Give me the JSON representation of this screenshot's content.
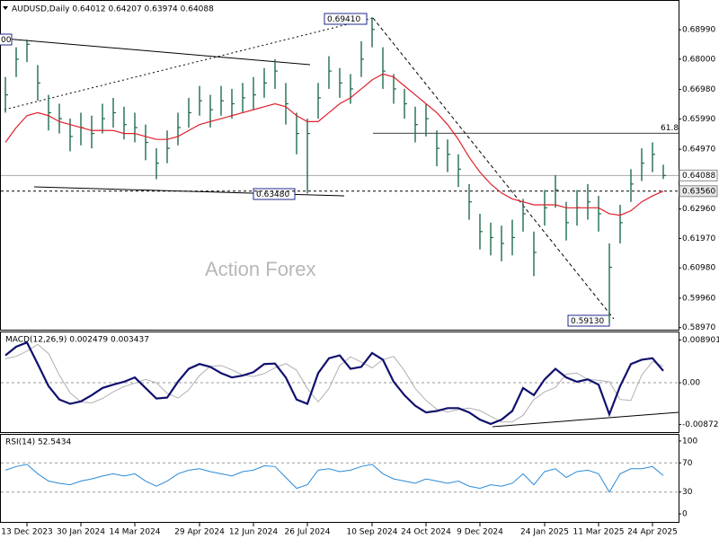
{
  "chart_data": [
    {
      "type": "ohlc",
      "title": "AUDUSD,Daily 0.64012 0.64207 0.63974 0.64088",
      "watermark": "Action Forex",
      "categories": [
        null,
        null,
        "13 Dec 2023",
        null,
        null,
        null,
        null,
        "30 Jan 2024",
        null,
        null,
        null,
        null,
        "14 Mar 2024",
        null,
        null,
        null,
        null,
        null,
        "29 Apr 2024",
        null,
        null,
        null,
        null,
        "12 Jun 2024",
        null,
        null,
        null,
        null,
        "26 Jul 2024",
        null,
        null,
        null,
        null,
        null,
        "10 Sep 2024",
        null,
        null,
        null,
        null,
        "24 Oct 2024",
        null,
        null,
        null,
        null,
        "9 Dec 2024",
        null,
        null,
        null,
        null,
        null,
        "24 Jan 2025",
        null,
        null,
        null,
        null,
        "11 Mar 2025",
        null,
        null,
        null,
        null,
        "24 Apr 2025",
        null
      ],
      "high": [
        0.674,
        0.684,
        0.6866,
        0.678,
        0.668,
        0.665,
        0.66,
        0.662,
        0.661,
        0.665,
        0.667,
        0.664,
        0.662,
        0.658,
        0.65,
        0.656,
        0.662,
        0.667,
        0.671,
        0.668,
        0.671,
        0.67,
        0.672,
        0.674,
        0.677,
        0.68,
        0.672,
        0.662,
        0.66,
        0.672,
        0.681,
        0.677,
        0.675,
        0.686,
        0.6941,
        0.684,
        0.675,
        0.67,
        0.664,
        0.665,
        0.656,
        0.653,
        0.648,
        0.638,
        0.628,
        0.625,
        0.624,
        0.626,
        0.633,
        0.622,
        0.636,
        0.641,
        0.632,
        0.636,
        0.638,
        0.634,
        0.618,
        0.631,
        0.643,
        0.65,
        0.652,
        0.6445
      ],
      "low": [
        0.662,
        0.674,
        0.679,
        0.666,
        0.656,
        0.655,
        0.649,
        0.651,
        0.65,
        0.655,
        0.657,
        0.653,
        0.652,
        0.646,
        0.6396,
        0.645,
        0.651,
        0.657,
        0.661,
        0.657,
        0.661,
        0.66,
        0.662,
        0.663,
        0.667,
        0.67,
        0.658,
        0.648,
        0.6348,
        0.66,
        0.67,
        0.667,
        0.665,
        0.674,
        0.684,
        0.67,
        0.665,
        0.66,
        0.652,
        0.654,
        0.644,
        0.642,
        0.637,
        0.626,
        0.616,
        0.614,
        0.612,
        0.614,
        0.622,
        0.607,
        0.624,
        0.63,
        0.619,
        0.624,
        0.626,
        0.622,
        0.5913,
        0.618,
        0.632,
        0.639,
        0.642,
        0.6397
      ],
      "close": [
        0.668,
        0.68,
        0.685,
        0.672,
        0.662,
        0.66,
        0.654,
        0.657,
        0.655,
        0.66,
        0.662,
        0.658,
        0.657,
        0.652,
        0.645,
        0.65,
        0.657,
        0.662,
        0.666,
        0.663,
        0.666,
        0.665,
        0.667,
        0.668,
        0.672,
        0.676,
        0.665,
        0.655,
        0.655,
        0.667,
        0.676,
        0.672,
        0.67,
        0.68,
        0.69,
        0.676,
        0.67,
        0.665,
        0.658,
        0.66,
        0.65,
        0.648,
        0.643,
        0.632,
        0.622,
        0.62,
        0.618,
        0.62,
        0.628,
        0.615,
        0.63,
        0.636,
        0.625,
        0.63,
        0.632,
        0.628,
        0.61,
        0.625,
        0.638,
        0.645,
        0.648,
        0.64088
      ],
      "color": "#1f6b4c",
      "ma": [
        0.652,
        0.657,
        0.661,
        0.662,
        0.661,
        0.659,
        0.658,
        0.657,
        0.656,
        0.656,
        0.656,
        0.655,
        0.655,
        0.654,
        0.653,
        0.653,
        0.654,
        0.656,
        0.658,
        0.659,
        0.66,
        0.661,
        0.662,
        0.663,
        0.664,
        0.665,
        0.664,
        0.661,
        0.659,
        0.659,
        0.662,
        0.665,
        0.667,
        0.67,
        0.673,
        0.675,
        0.674,
        0.671,
        0.668,
        0.665,
        0.662,
        0.658,
        0.653,
        0.647,
        0.642,
        0.638,
        0.635,
        0.633,
        0.632,
        0.631,
        0.631,
        0.631,
        0.63,
        0.63,
        0.63,
        0.63,
        0.628,
        0.6275,
        0.629,
        0.632,
        0.634,
        0.6356
      ],
      "ma_color": "#e0202a",
      "ylim": [
        0.589,
        0.6996
      ],
      "yticks": [
        {
          "value": 0.6899,
          "label": "0.68990"
        },
        {
          "value": 0.68,
          "label": "0.68000"
        },
        {
          "value": 0.6698,
          "label": "0.66980"
        },
        {
          "value": 0.6599,
          "label": "0.65990"
        },
        {
          "value": 0.6497,
          "label": "0.64970"
        },
        {
          "value": 0.6296,
          "label": "0.62960"
        },
        {
          "value": 0.6197,
          "label": "0.61970"
        },
        {
          "value": 0.6098,
          "label": "0.60980"
        },
        {
          "value": 0.5996,
          "label": "0.59960"
        },
        {
          "value": 0.5897,
          "label": "0.58970"
        }
      ],
      "price_levels": [
        {
          "value": 0.64088,
          "label": "0.64088"
        },
        {
          "value": 0.6356,
          "label": "0.63560"
        }
      ],
      "fib_level": 0.6551,
      "fib_label": "61.8",
      "annotations": [
        "0.69410",
        "0.63480",
        "0.59130",
        "00"
      ]
    },
    {
      "type": "line",
      "title": "MACD(12,26,9) 0.002479 0.003437",
      "series": [
        {
          "color": "#10106e",
          "values": [
            0.0057,
            0.0075,
            0.0084,
            0.0039,
            -0.0007,
            -0.0035,
            -0.0044,
            -0.0039,
            -0.0026,
            -0.0011,
            -0.0004,
            0.0002,
            0.0011,
            -0.0011,
            -0.0033,
            -0.0031,
            0.0002,
            0.0029,
            0.0039,
            0.0033,
            0.002,
            0.0011,
            0.0015,
            0.0022,
            0.0039,
            0.004,
            0.0011,
            -0.0035,
            -0.0044,
            0.002,
            0.0051,
            0.0057,
            0.0029,
            0.0033,
            0.0062,
            0.0048,
            0.0002,
            -0.0026,
            -0.0048,
            -0.0062,
            -0.0059,
            -0.0053,
            -0.0053,
            -0.0062,
            -0.0077,
            -0.0086,
            -0.0077,
            -0.0059,
            -0.0011,
            -0.0026,
            0.0007,
            0.0029,
            0.0011,
            0.0002,
            0.0007,
            -0.0004,
            -0.0066,
            -0.0007,
            0.0039,
            0.0048,
            0.0051,
            0.002479
          ]
        },
        {
          "color": "#b0b0b0",
          "values": [
            0.005,
            0.0055,
            0.0066,
            0.008,
            0.0061,
            0.0016,
            -0.0021,
            -0.004,
            -0.0042,
            -0.0033,
            -0.0019,
            -0.0008,
            -0.0001,
            0.0007,
            0.0,
            -0.0022,
            -0.0032,
            -0.0015,
            0.0015,
            0.0034,
            0.0036,
            0.0027,
            0.0016,
            0.0013,
            0.0019,
            0.0031,
            0.004,
            0.0026,
            -0.0012,
            -0.004,
            -0.0012,
            0.0036,
            0.0054,
            0.0043,
            0.0031,
            0.0048,
            0.0055,
            0.0025,
            -0.0012,
            -0.0037,
            -0.0055,
            -0.0061,
            -0.0056,
            -0.0053,
            -0.0058,
            -0.007,
            -0.0082,
            -0.0082,
            -0.0068,
            -0.0035,
            -0.0019,
            -0.001,
            0.0018,
            0.002,
            0.0007,
            0.0005,
            0.0002,
            -0.0035,
            -0.0037,
            0.0016,
            0.0044,
            0.003437
          ]
        }
      ],
      "ylim": [
        -0.0103,
        0.0105
      ],
      "yticks": [
        {
          "value": 0.008901,
          "label": "0.008901"
        },
        {
          "value": 0,
          "label": "0.00"
        },
        {
          "value": -0.008729,
          "label": "-0.008729"
        }
      ],
      "dashed_levels": [
        0
      ]
    },
    {
      "type": "line",
      "title": "RSI(14) 52.5434",
      "series": [
        {
          "color": "#2a8ad8",
          "values": [
            60,
            65,
            68,
            55,
            45,
            42,
            40,
            45,
            48,
            52,
            55,
            52,
            55,
            45,
            38,
            45,
            55,
            60,
            62,
            58,
            55,
            52,
            58,
            60,
            66,
            65,
            50,
            35,
            40,
            60,
            62,
            58,
            60,
            65,
            68,
            55,
            48,
            45,
            42,
            48,
            45,
            42,
            45,
            38,
            35,
            40,
            38,
            42,
            55,
            40,
            58,
            62,
            50,
            58,
            60,
            55,
            30,
            55,
            62,
            62,
            65,
            52.5434
          ]
        }
      ],
      "ylim": [
        -11,
        108.5
      ],
      "yticks": [
        100,
        70,
        30,
        0
      ],
      "dashed_levels": [
        70,
        30
      ]
    }
  ]
}
